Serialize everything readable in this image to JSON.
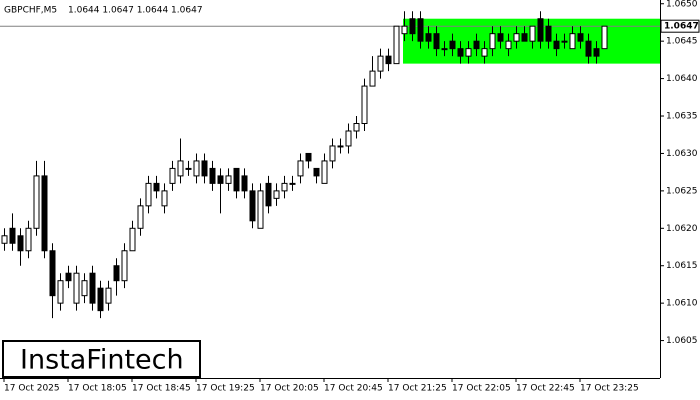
{
  "chart_data": {
    "type": "candlestick",
    "title": "GBPCHF,M5",
    "subtitle": "1.0644 1.0647 1.0644 1.0647",
    "watermark": "InstaFintech",
    "x": [
      "17 Oct 2025",
      null,
      null,
      null,
      null,
      null,
      null,
      null,
      "17 Oct 18:05",
      null,
      null,
      null,
      null,
      null,
      null,
      null,
      "17 Oct 18:45",
      null,
      null,
      null,
      null,
      null,
      null,
      null,
      "17 Oct 19:25",
      null,
      null,
      null,
      null,
      null,
      null,
      null,
      "17 Oct 20:05",
      null,
      null,
      null,
      null,
      null,
      null,
      null,
      "17 Oct 20:45",
      null,
      null,
      null,
      null,
      null,
      null,
      null,
      "17 Oct 21:25",
      null,
      null,
      null,
      null,
      null,
      null,
      null,
      "17 Oct 22:05",
      null,
      null,
      null,
      null,
      null,
      null,
      null,
      "17 Oct 22:45",
      null,
      null,
      null,
      null,
      null,
      null,
      null,
      "17 Oct 23:25",
      null,
      null,
      null
    ],
    "open": [
      1.0618,
      1.062,
      1.0619,
      1.0617,
      1.062,
      1.0627,
      1.0617,
      1.061,
      1.0614,
      1.061,
      1.0611,
      1.0614,
      1.0612,
      1.061,
      1.0615,
      1.0613,
      1.0617,
      1.062,
      1.0623,
      1.0626,
      1.0623,
      1.0626,
      1.0627,
      1.0628,
      1.0627,
      1.0629,
      1.0628,
      1.0627,
      1.0626,
      1.0628,
      1.0627,
      1.0625,
      1.062,
      1.0626,
      1.0624,
      1.0625,
      1.0626,
      1.0627,
      1.063,
      1.0628,
      1.0626,
      1.0629,
      1.0631,
      1.0631,
      1.0633,
      1.0634,
      1.0639,
      1.0641,
      1.0643,
      1.0642,
      1.0646,
      1.0648,
      1.0648,
      1.0646,
      1.0646,
      1.0644,
      1.0645,
      1.0644,
      1.0643,
      1.0645,
      1.0643,
      1.0644,
      1.0646,
      1.0644,
      1.0645,
      1.0646,
      1.0645,
      1.0648,
      1.0647,
      1.0645,
      1.0645,
      1.0644,
      1.0646,
      1.0645,
      1.0644,
      1.0644
    ],
    "high": [
      1.062,
      1.0622,
      1.062,
      1.0621,
      1.0629,
      1.0629,
      1.0618,
      1.0614,
      1.0615,
      1.0615,
      1.0614,
      1.0615,
      1.0613,
      1.0613,
      1.0616,
      1.0618,
      1.0621,
      1.0624,
      1.0627,
      1.0627,
      1.0626,
      1.0629,
      1.0632,
      1.0629,
      1.063,
      1.063,
      1.0629,
      1.0628,
      1.0628,
      1.0628,
      1.0628,
      1.0626,
      1.0626,
      1.0627,
      1.0626,
      1.0627,
      1.0627,
      1.063,
      1.063,
      1.0628,
      1.063,
      1.0632,
      1.0632,
      1.0634,
      1.0635,
      1.064,
      1.0643,
      1.0644,
      1.0644,
      1.0647,
      1.0649,
      1.0649,
      1.0649,
      1.0647,
      1.0647,
      1.0645,
      1.0646,
      1.0645,
      1.0645,
      1.0646,
      1.0645,
      1.0647,
      1.0647,
      1.0646,
      1.0647,
      1.0647,
      1.0647,
      1.0649,
      1.0648,
      1.0646,
      1.0646,
      1.0647,
      1.0647,
      1.0646,
      1.0645,
      1.0647
    ],
    "low": [
      1.0617,
      1.0617,
      1.0615,
      1.0616,
      1.0619,
      1.0616,
      1.0608,
      1.0609,
      1.0612,
      1.0609,
      1.061,
      1.0609,
      1.0608,
      1.0609,
      1.0611,
      1.0612,
      1.0617,
      1.0619,
      1.0622,
      1.0624,
      1.0622,
      1.0625,
      1.0626,
      1.0627,
      1.0626,
      1.0626,
      1.0625,
      1.0622,
      1.0625,
      1.0624,
      1.0624,
      1.062,
      1.062,
      1.0622,
      1.0623,
      1.0624,
      1.0625,
      1.0626,
      1.0628,
      1.0626,
      1.0626,
      1.0628,
      1.063,
      1.063,
      1.0632,
      1.0633,
      1.0639,
      1.064,
      1.0641,
      1.0642,
      1.0645,
      1.0645,
      1.0644,
      1.0644,
      1.0643,
      1.0643,
      1.0643,
      1.0642,
      1.0642,
      1.0643,
      1.0642,
      1.0643,
      1.0644,
      1.0643,
      1.0644,
      1.0645,
      1.0644,
      1.0644,
      1.0644,
      1.0643,
      1.0644,
      1.0644,
      1.0644,
      1.0642,
      1.0642,
      1.0644
    ],
    "close": [
      1.0619,
      1.0618,
      1.0617,
      1.062,
      1.0627,
      1.0617,
      1.0611,
      1.0613,
      1.0613,
      1.0614,
      1.0613,
      1.061,
      1.0609,
      1.0612,
      1.0613,
      1.0617,
      1.062,
      1.0623,
      1.0626,
      1.0625,
      1.0625,
      1.0628,
      1.0629,
      1.0628,
      1.0629,
      1.0627,
      1.0626,
      1.0626,
      1.0627,
      1.0625,
      1.0625,
      1.0621,
      1.0625,
      1.0623,
      1.0625,
      1.0626,
      1.0626,
      1.0629,
      1.0629,
      1.0627,
      1.0629,
      1.0631,
      1.0631,
      1.0633,
      1.0634,
      1.0639,
      1.0641,
      1.0643,
      1.0642,
      1.0647,
      1.0647,
      1.0646,
      1.0645,
      1.0645,
      1.0644,
      1.0644,
      1.0644,
      1.0643,
      1.0644,
      1.0644,
      1.0644,
      1.0646,
      1.0645,
      1.0645,
      1.0646,
      1.0645,
      1.0647,
      1.0645,
      1.0645,
      1.0644,
      1.0645,
      1.0646,
      1.0645,
      1.0643,
      1.0643,
      1.0647
    ],
    "up_color": "#ffffff",
    "down_color": "#000000",
    "zone": {
      "low": 1.0642,
      "high": 1.0648,
      "color": "#00ff00"
    },
    "current_price": 1.0647,
    "ylim": [
      1.06,
      1.06505
    ],
    "yticks": [
      1.0605,
      {
        "value": 1.061,
        "label": "1.0610"
      },
      1.0615,
      {
        "value": 1.062,
        "label": "1.0620"
      },
      1.0625,
      {
        "value": 1.063,
        "label": "1.0630"
      },
      1.0635,
      {
        "value": 1.064,
        "label": "1.0640"
      },
      1.0645,
      {
        "value": 1.065,
        "label": "1.0650"
      }
    ]
  }
}
